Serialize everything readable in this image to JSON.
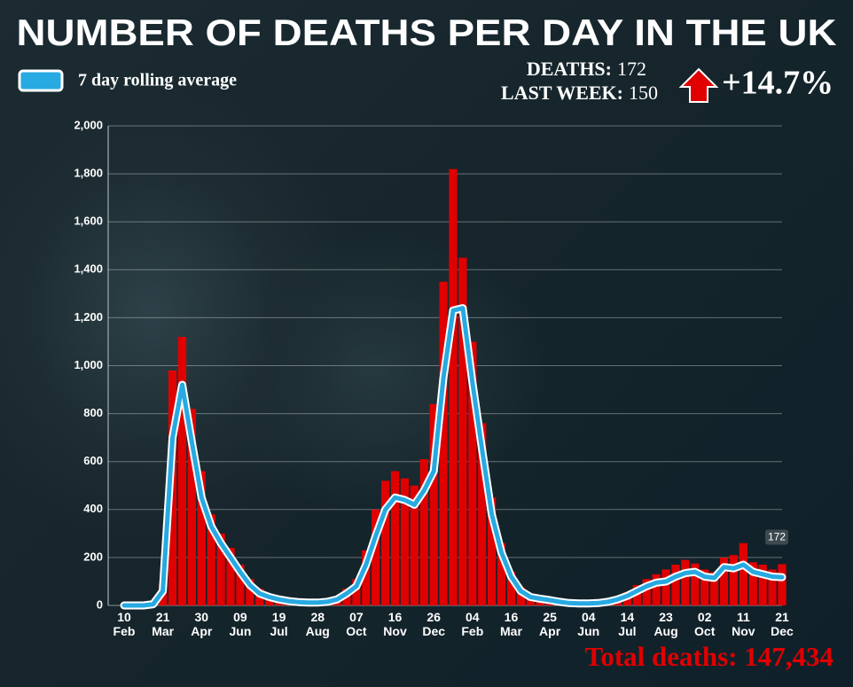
{
  "chart_data": {
    "type": "bar",
    "title": "NUMBER OF DEATHS PER DAY IN THE UK",
    "deaths": {
      "label": "DEATHS:",
      "value": 172
    },
    "last_week": {
      "label": "LAST WEEK:",
      "value": 150
    },
    "change": "+14.7%",
    "total": "Total deaths: 147,434",
    "categories": [
      "10 Feb",
      null,
      null,
      null,
      "21 Mar",
      null,
      null,
      null,
      "30 Apr",
      null,
      null,
      null,
      "09 Jun",
      null,
      null,
      null,
      "19 Jul",
      null,
      null,
      null,
      "28 Aug",
      null,
      null,
      null,
      "07 Oct",
      null,
      null,
      null,
      "16 Nov",
      null,
      null,
      null,
      "26 Dec",
      null,
      null,
      null,
      "04 Feb",
      null,
      null,
      null,
      "16 Mar",
      null,
      null,
      null,
      "25 Apr",
      null,
      null,
      null,
      "04 Jun",
      null,
      null,
      null,
      "14 Jul",
      null,
      null,
      null,
      "23 Aug",
      null,
      null,
      null,
      "02 Oct",
      null,
      null,
      null,
      "11 Nov",
      null,
      null,
      null,
      "21 Dec"
    ],
    "values": [
      0,
      0,
      0,
      10,
      90,
      980,
      1120,
      820,
      560,
      380,
      300,
      240,
      170,
      110,
      70,
      45,
      30,
      22,
      16,
      14,
      15,
      20,
      35,
      70,
      110,
      230,
      400,
      520,
      560,
      530,
      500,
      610,
      840,
      1350,
      1820,
      1450,
      1100,
      760,
      450,
      260,
      140,
      75,
      45,
      35,
      28,
      20,
      14,
      10,
      12,
      14,
      20,
      35,
      55,
      85,
      110,
      130,
      150,
      170,
      190,
      175,
      150,
      140,
      200,
      210,
      260,
      180,
      170,
      150,
      172
    ],
    "color": "#e00000",
    "series": [
      {
        "name": "7 day rolling average",
        "color": "#27a9e1",
        "values": [
          0,
          0,
          0,
          5,
          60,
          700,
          920,
          680,
          450,
          330,
          260,
          200,
          140,
          85,
          50,
          35,
          25,
          18,
          14,
          12,
          12,
          15,
          25,
          50,
          80,
          170,
          290,
          400,
          450,
          440,
          420,
          480,
          560,
          950,
          1230,
          1240,
          930,
          650,
          380,
          220,
          120,
          60,
          35,
          28,
          22,
          15,
          10,
          8,
          8,
          10,
          15,
          25,
          40,
          60,
          80,
          95,
          100,
          120,
          135,
          140,
          120,
          115,
          160,
          155,
          170,
          140,
          130,
          120,
          118
        ]
      }
    ],
    "ylim": [
      0,
      2000
    ],
    "yticks": [
      0,
      200,
      400,
      600,
      800,
      {
        "value": 1000,
        "label": "1,000"
      },
      {
        "value": 1200,
        "label": "1,200"
      },
      {
        "value": 1400,
        "label": "1,400"
      },
      {
        "value": 1600,
        "label": "1,600"
      },
      {
        "value": 1800,
        "label": "1,800"
      },
      {
        "value": 2000,
        "label": "2,000"
      }
    ],
    "grid": true
  }
}
